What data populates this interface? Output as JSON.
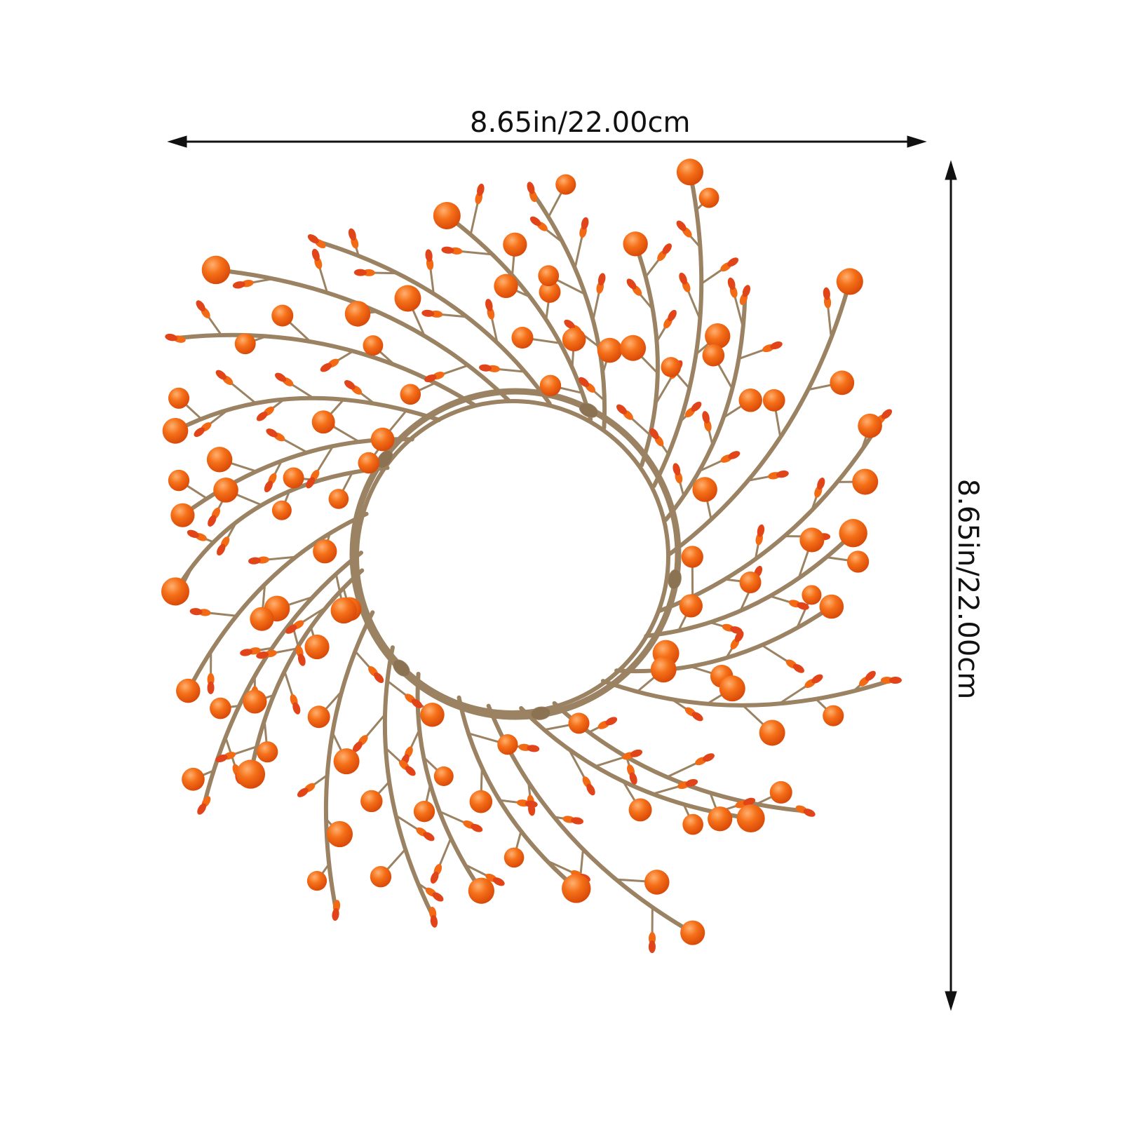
{
  "dimensions": {
    "width_label": "8.65in/22.00cm",
    "height_label": "8.65in/22.00cm"
  },
  "colors": {
    "stem": "#9a8262",
    "berry": "#f06010",
    "berry_highlight": "#ffb070",
    "pip": "#e84a12",
    "arrow": "#111111"
  },
  "image": {
    "subject-icon": "berry-wreath"
  }
}
